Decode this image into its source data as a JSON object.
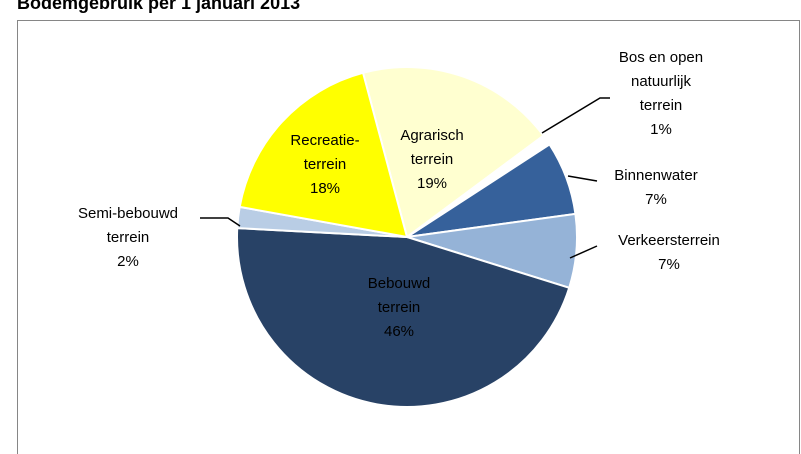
{
  "chart_data": {
    "type": "pie",
    "title": "Bodemgebruik per 1 januari 2013",
    "categories": [
      "Agrarisch\nterrein",
      "Bos en open\nnatuurlijk\nterrein",
      "Binnenwater",
      "Verkeersterrein",
      "Bebouwd\nterrein",
      "Semi-bebouwd\nterrein",
      "Recreatie-\nterrein"
    ],
    "values": [
      19,
      1,
      7,
      7,
      46,
      2,
      18
    ],
    "value_labels": [
      "19%",
      "1%",
      "7%",
      "7%",
      "46%",
      "2%",
      "18%"
    ],
    "colors": [
      "#ffffd0",
      "#ffffff",
      "#36619b",
      "#95b3d7",
      "#284266",
      "#b9cde5",
      "#ffff00"
    ]
  }
}
